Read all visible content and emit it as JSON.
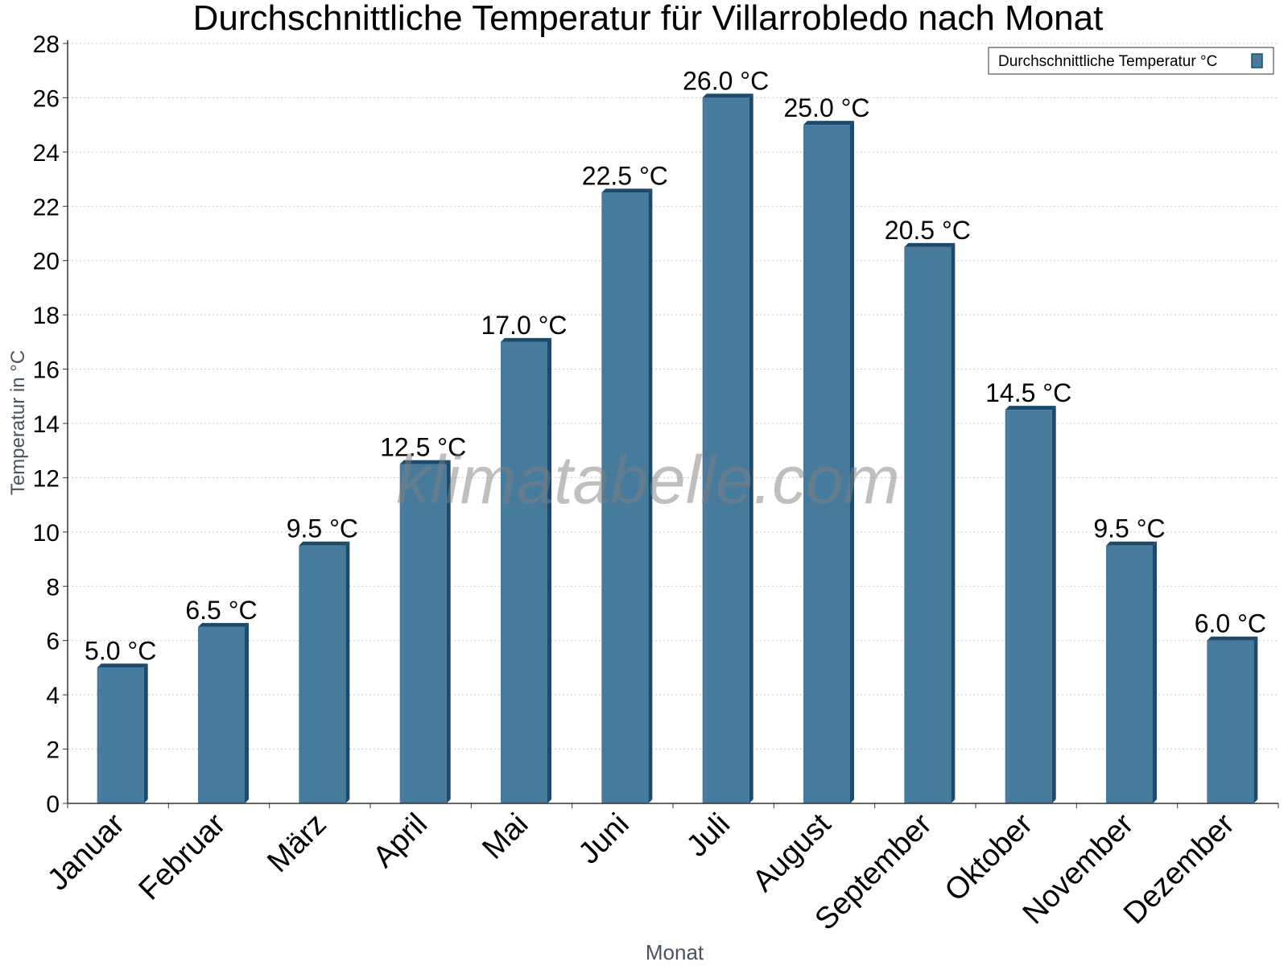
{
  "chart_data": {
    "type": "bar",
    "title": "Durchschnittliche Temperatur für Villarrobledo nach Monat",
    "xlabel": "Monat",
    "ylabel": "Temperatur in °C",
    "categories": [
      "Januar",
      "Februar",
      "März",
      "April",
      "Mai",
      "Juni",
      "Juli",
      "August",
      "September",
      "Oktober",
      "November",
      "Dezember"
    ],
    "series": [
      {
        "name": "Durchschnittliche Temperatur °C",
        "values": [
          5.0,
          6.5,
          9.5,
          12.5,
          17.0,
          22.5,
          26.0,
          25.0,
          20.5,
          14.5,
          9.5,
          6.0
        ]
      }
    ],
    "value_labels": [
      "5.0 °C",
      "6.5 °C",
      "9.5 °C",
      "12.5 °C",
      "17.0 °C",
      "22.5 °C",
      "26.0 °C",
      "25.0 °C",
      "20.5 °C",
      "14.5 °C",
      "9.5 °C",
      "6.0 °C"
    ],
    "yticks": [
      "0",
      "2",
      "4",
      "6",
      "8",
      "10",
      "12",
      "14",
      "16",
      "18",
      "20",
      "22",
      "24",
      "26",
      "28"
    ],
    "ylim": [
      0,
      28
    ],
    "grid": true,
    "legend_position": "top-right",
    "colors": {
      "bar": "#467b9d",
      "bar_side": "#1d4a6a"
    }
  },
  "watermark": "klimatabelle.com"
}
